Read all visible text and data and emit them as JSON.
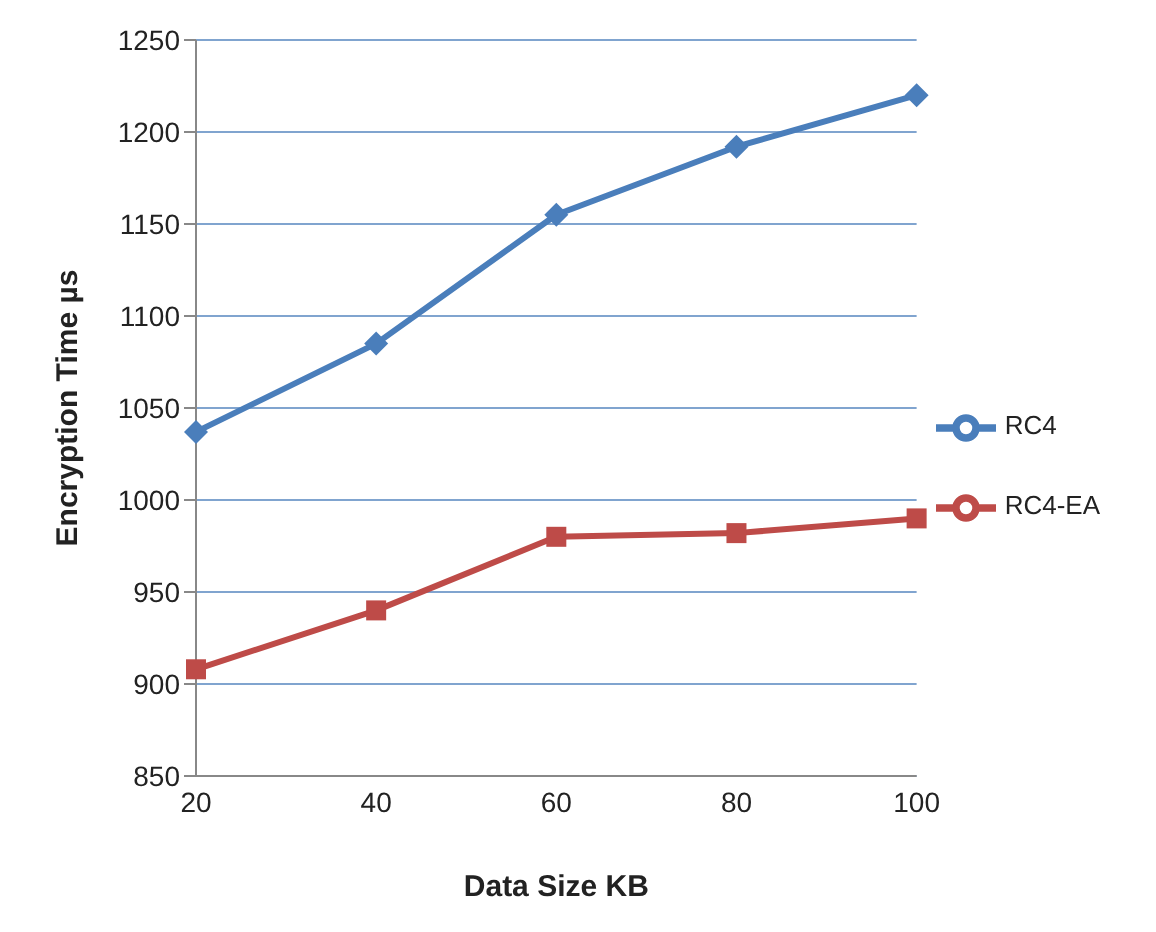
{
  "chart_data": {
    "type": "line",
    "xlabel": "Data Size KB",
    "ylabel": "Encryption Time  µs",
    "categories": [
      "20",
      "40",
      "60",
      "80",
      "100"
    ],
    "series": [
      {
        "name": "RC4",
        "color": "#4a7ebb",
        "marker": "diamond",
        "values": [
          1037,
          1085,
          1155,
          1192,
          1220
        ]
      },
      {
        "name": "RC4-EA",
        "color": "#be4b48",
        "marker": "square",
        "values": [
          908,
          940,
          980,
          982,
          990
        ]
      }
    ],
    "ylim": [
      850,
      1250
    ],
    "yticks": [
      850,
      900,
      950,
      1000,
      1050,
      1100,
      1150,
      1200,
      1250
    ],
    "grid": "y",
    "legend": "right"
  }
}
